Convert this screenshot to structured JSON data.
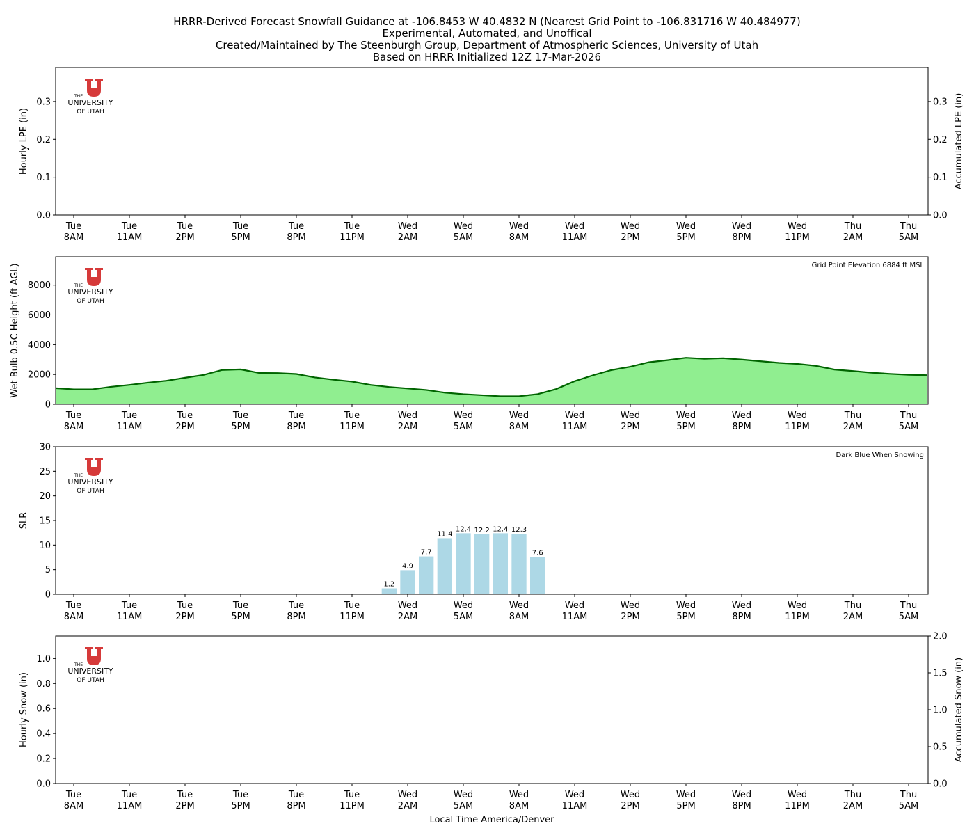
{
  "title_lines": [
    "HRRR-Derived Forecast Snowfall Guidance at -106.8453 W 40.4832 N (Nearest Grid Point to -106.831716 W 40.484977)",
    "Experimental, Automated, and Unoffical",
    "Created/Maintained by The Steenburgh Group, Department of Atmospheric Sciences, University of Utah",
    "Based on HRRR Initialized 12Z 17-Mar-2026"
  ],
  "logo_text": [
    "THE",
    "UNIVERSITY",
    "OF UTAH"
  ],
  "xlabel": "Local Time America/Denver",
  "x_ticks": [
    {
      "day": "Tue",
      "time": "8AM"
    },
    {
      "day": "Tue",
      "time": "11AM"
    },
    {
      "day": "Tue",
      "time": "2PM"
    },
    {
      "day": "Tue",
      "time": "5PM"
    },
    {
      "day": "Tue",
      "time": "8PM"
    },
    {
      "day": "Tue",
      "time": "11PM"
    },
    {
      "day": "Wed",
      "time": "2AM"
    },
    {
      "day": "Wed",
      "time": "5AM"
    },
    {
      "day": "Wed",
      "time": "8AM"
    },
    {
      "day": "Wed",
      "time": "11AM"
    },
    {
      "day": "Wed",
      "time": "2PM"
    },
    {
      "day": "Wed",
      "time": "5PM"
    },
    {
      "day": "Wed",
      "time": "8PM"
    },
    {
      "day": "Wed",
      "time": "11PM"
    },
    {
      "day": "Thu",
      "time": "2AM"
    },
    {
      "day": "Thu",
      "time": "5AM"
    }
  ],
  "colors": {
    "wetbulb_fill": "#90ee90",
    "wetbulb_line": "#006400",
    "slr_bar": "#add8e6",
    "logo_red": "#d63a3a"
  },
  "chart_data": [
    {
      "type": "bar",
      "ylabel": "Hourly LPE (in)",
      "ylabel_right": "Accumulated LPE (in)",
      "ylim": [
        0,
        0.39
      ],
      "yticks": [
        "0.0",
        "0.1",
        "0.2",
        "0.3"
      ],
      "ylim_right": [
        0,
        0.39
      ],
      "yticks_right": [
        "0.0",
        "0.1",
        "0.2",
        "0.3"
      ],
      "values": [],
      "grid": false
    },
    {
      "type": "area",
      "ylabel": "Wet Bulb 0.5C Height (ft AGL)",
      "annotation": "Grid Point Elevation 6884 ft MSL",
      "ylim": [
        0,
        9900
      ],
      "yticks": [
        "0",
        "2000",
        "4000",
        "6000",
        "8000"
      ],
      "grid": false,
      "x": [
        "Tue 7AM",
        "Tue 8AM",
        "Tue 9AM",
        "Tue 10AM",
        "Tue 11AM",
        "Tue 12PM",
        "Tue 1PM",
        "Tue 2PM",
        "Tue 3PM",
        "Tue 4PM",
        "Tue 5PM",
        "Tue 6PM",
        "Tue 7PM",
        "Tue 8PM",
        "Tue 9PM",
        "Tue 10PM",
        "Tue 11PM",
        "Wed 12AM",
        "Wed 1AM",
        "Wed 2AM",
        "Wed 3AM",
        "Wed 4AM",
        "Wed 5AM",
        "Wed 6AM",
        "Wed 7AM",
        "Wed 8AM",
        "Wed 9AM",
        "Wed 10AM",
        "Wed 11AM",
        "Wed 12PM",
        "Wed 1PM",
        "Wed 2PM",
        "Wed 3PM",
        "Wed 4PM",
        "Wed 5PM",
        "Wed 6PM",
        "Wed 7PM",
        "Wed 8PM",
        "Wed 9PM",
        "Wed 10PM",
        "Wed 11PM",
        "Thu 12AM",
        "Thu 1AM",
        "Thu 2AM",
        "Thu 3AM",
        "Thu 4AM",
        "Thu 5AM",
        "Thu 6AM"
      ],
      "values": [
        1080,
        1000,
        1000,
        1170,
        1300,
        1450,
        1580,
        1780,
        1970,
        2300,
        2340,
        2100,
        2090,
        2030,
        1800,
        1650,
        1520,
        1300,
        1160,
        1060,
        960,
        780,
        680,
        610,
        540,
        540,
        680,
        1020,
        1550,
        1950,
        2300,
        2520,
        2820,
        2960,
        3120,
        3050,
        3090,
        3000,
        2890,
        2780,
        2710,
        2580,
        2330,
        2230,
        2120,
        2040,
        1980,
        1950
      ]
    },
    {
      "type": "bar",
      "ylabel": "SLR",
      "annotation": "Dark Blue When Snowing",
      "ylim": [
        0,
        30
      ],
      "yticks": [
        "0",
        "5",
        "10",
        "15",
        "20",
        "25",
        "30"
      ],
      "grid": false,
      "x": [
        "Wed 1AM",
        "Wed 2AM",
        "Wed 3AM",
        "Wed 4AM",
        "Wed 5AM",
        "Wed 6AM",
        "Wed 7AM",
        "Wed 8AM",
        "Wed 9AM"
      ],
      "values": [
        1.2,
        4.9,
        7.7,
        11.4,
        12.4,
        12.2,
        12.4,
        12.3,
        7.6
      ],
      "labels": [
        "1.2",
        "4.9",
        "7.7",
        "11.4",
        "12.4",
        "12.2",
        "12.4",
        "12.3",
        "7.6"
      ]
    },
    {
      "type": "bar",
      "ylabel": "Hourly Snow (in)",
      "ylabel_right": "Accumulated Snow (in)",
      "ylim": [
        0,
        1.18
      ],
      "yticks": [
        "0.0",
        "0.2",
        "0.4",
        "0.6",
        "0.8",
        "1.0"
      ],
      "ylim_right": [
        0,
        2.0
      ],
      "yticks_right": [
        "0.0",
        "0.5",
        "1.0",
        "1.5",
        "2.0"
      ],
      "values": [],
      "grid": false
    }
  ]
}
